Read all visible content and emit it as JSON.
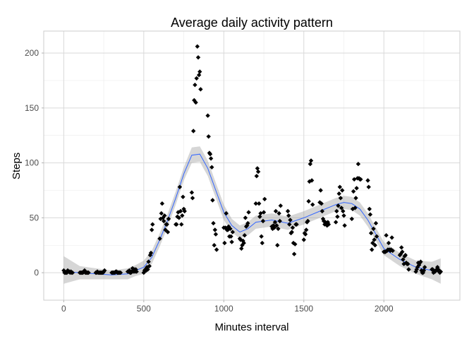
{
  "chart_data": {
    "type": "scatter",
    "title": "Average daily activity pattern",
    "xlabel": "Minutes interval",
    "ylabel": "Steps",
    "xlim": [
      -125,
      2475
    ],
    "ylim": [
      -25,
      220
    ],
    "x_ticks": [
      0,
      500,
      1000,
      1500,
      2000
    ],
    "x_tick_labels": [
      "0",
      "500",
      "1000",
      "1500",
      "2000"
    ],
    "y_ticks": [
      0,
      50,
      100,
      150,
      200
    ],
    "y_tick_labels": [
      "0",
      "50",
      "100",
      "150",
      "200"
    ],
    "grid": true,
    "legend": "none",
    "colors": {
      "points": "#000000",
      "smooth_line": "#3366ff",
      "confidence_band": "#999999",
      "grid_major": "#d9d9d9",
      "grid_minor": "#ebebeb",
      "panel_border": "#cccccc"
    },
    "points": [
      [
        0,
        2
      ],
      [
        5,
        0
      ],
      [
        10,
        0
      ],
      [
        15,
        0
      ],
      [
        20,
        0
      ],
      [
        25,
        2
      ],
      [
        30,
        1
      ],
      [
        35,
        1
      ],
      [
        40,
        0
      ],
      [
        45,
        1
      ],
      [
        50,
        0
      ],
      [
        55,
        0
      ],
      [
        100,
        0
      ],
      [
        105,
        0
      ],
      [
        110,
        0
      ],
      [
        115,
        0
      ],
      [
        120,
        0
      ],
      [
        125,
        1
      ],
      [
        130,
        2
      ],
      [
        135,
        0
      ],
      [
        140,
        0
      ],
      [
        145,
        0
      ],
      [
        150,
        0
      ],
      [
        155,
        0
      ],
      [
        200,
        0
      ],
      [
        205,
        0
      ],
      [
        210,
        1
      ],
      [
        215,
        0
      ],
      [
        220,
        0
      ],
      [
        225,
        0
      ],
      [
        230,
        0
      ],
      [
        235,
        0
      ],
      [
        240,
        0
      ],
      [
        245,
        0
      ],
      [
        250,
        1
      ],
      [
        255,
        2
      ],
      [
        300,
        0
      ],
      [
        305,
        0
      ],
      [
        310,
        0
      ],
      [
        315,
        0
      ],
      [
        320,
        0
      ],
      [
        325,
        1
      ],
      [
        330,
        1
      ],
      [
        335,
        0
      ],
      [
        340,
        0
      ],
      [
        345,
        0
      ],
      [
        350,
        0
      ],
      [
        355,
        0
      ],
      [
        400,
        1
      ],
      [
        405,
        1
      ],
      [
        410,
        2
      ],
      [
        415,
        0
      ],
      [
        420,
        0
      ],
      [
        425,
        1
      ],
      [
        430,
        4
      ],
      [
        435,
        1
      ],
      [
        440,
        3
      ],
      [
        445,
        1
      ],
      [
        450,
        3
      ],
      [
        455,
        1
      ],
      [
        500,
        0
      ],
      [
        505,
        2
      ],
      [
        510,
        3
      ],
      [
        515,
        2
      ],
      [
        520,
        5
      ],
      [
        525,
        3
      ],
      [
        530,
        10
      ],
      [
        535,
        6
      ],
      [
        540,
        16
      ],
      [
        545,
        18
      ],
      [
        550,
        39
      ],
      [
        555,
        44
      ],
      [
        600,
        31
      ],
      [
        605,
        49
      ],
      [
        610,
        54
      ],
      [
        615,
        63
      ],
      [
        620,
        50
      ],
      [
        625,
        47
      ],
      [
        630,
        52
      ],
      [
        635,
        39
      ],
      [
        640,
        44
      ],
      [
        645,
        44
      ],
      [
        650,
        37
      ],
      [
        655,
        49
      ],
      [
        700,
        44
      ],
      [
        705,
        44
      ],
      [
        710,
        51
      ],
      [
        715,
        55
      ],
      [
        720,
        50
      ],
      [
        725,
        78
      ],
      [
        730,
        56
      ],
      [
        735,
        44
      ],
      [
        740,
        52
      ],
      [
        745,
        69
      ],
      [
        750,
        58
      ],
      [
        755,
        56
      ],
      [
        800,
        73
      ],
      [
        805,
        68
      ],
      [
        810,
        129
      ],
      [
        815,
        157
      ],
      [
        820,
        171
      ],
      [
        825,
        155
      ],
      [
        830,
        177
      ],
      [
        835,
        206
      ],
      [
        840,
        196
      ],
      [
        845,
        180
      ],
      [
        850,
        183
      ],
      [
        855,
        167
      ],
      [
        900,
        143
      ],
      [
        905,
        124
      ],
      [
        910,
        109
      ],
      [
        915,
        108
      ],
      [
        920,
        104
      ],
      [
        925,
        96
      ],
      [
        930,
        66
      ],
      [
        935,
        45
      ],
      [
        940,
        25
      ],
      [
        945,
        39
      ],
      [
        950,
        35
      ],
      [
        955,
        21
      ],
      [
        1000,
        41
      ],
      [
        1005,
        27
      ],
      [
        1010,
        41
      ],
      [
        1015,
        54
      ],
      [
        1020,
        39
      ],
      [
        1025,
        39
      ],
      [
        1030,
        42
      ],
      [
        1035,
        33
      ],
      [
        1040,
        40
      ],
      [
        1045,
        33
      ],
      [
        1050,
        28
      ],
      [
        1055,
        37
      ],
      [
        1100,
        31
      ],
      [
        1105,
        30
      ],
      [
        1110,
        22
      ],
      [
        1115,
        25
      ],
      [
        1120,
        29
      ],
      [
        1125,
        27
      ],
      [
        1130,
        34
      ],
      [
        1135,
        50
      ],
      [
        1140,
        42
      ],
      [
        1145,
        43
      ],
      [
        1150,
        45
      ],
      [
        1155,
        55
      ],
      [
        1200,
        63
      ],
      [
        1205,
        88
      ],
      [
        1210,
        95
      ],
      [
        1215,
        92
      ],
      [
        1220,
        63
      ],
      [
        1225,
        51
      ],
      [
        1230,
        54
      ],
      [
        1235,
        33
      ],
      [
        1240,
        27
      ],
      [
        1245,
        47
      ],
      [
        1250,
        55
      ],
      [
        1255,
        67
      ],
      [
        1300,
        42
      ],
      [
        1305,
        40
      ],
      [
        1310,
        43
      ],
      [
        1315,
        41
      ],
      [
        1320,
        46
      ],
      [
        1325,
        56
      ],
      [
        1330,
        43
      ],
      [
        1335,
        25
      ],
      [
        1340,
        40
      ],
      [
        1345,
        54
      ],
      [
        1350,
        47
      ],
      [
        1355,
        61
      ],
      [
        1400,
        56
      ],
      [
        1405,
        52
      ],
      [
        1410,
        44
      ],
      [
        1415,
        48
      ],
      [
        1420,
        36
      ],
      [
        1425,
        37
      ],
      [
        1430,
        41
      ],
      [
        1435,
        27
      ],
      [
        1440,
        17
      ],
      [
        1445,
        26
      ],
      [
        1450,
        44
      ],
      [
        1455,
        44
      ],
      [
        1500,
        30
      ],
      [
        1505,
        36
      ],
      [
        1510,
        35
      ],
      [
        1515,
        39
      ],
      [
        1520,
        46
      ],
      [
        1525,
        47
      ],
      [
        1530,
        65
      ],
      [
        1535,
        83
      ],
      [
        1540,
        99
      ],
      [
        1545,
        102
      ],
      [
        1550,
        84
      ],
      [
        1555,
        62
      ],
      [
        1600,
        64
      ],
      [
        1605,
        75
      ],
      [
        1610,
        63
      ],
      [
        1615,
        56
      ],
      [
        1620,
        49
      ],
      [
        1625,
        47
      ],
      [
        1630,
        44
      ],
      [
        1635,
        46
      ],
      [
        1640,
        44
      ],
      [
        1645,
        43
      ],
      [
        1650,
        46
      ],
      [
        1655,
        44
      ],
      [
        1700,
        46
      ],
      [
        1705,
        56
      ],
      [
        1710,
        51
      ],
      [
        1715,
        61
      ],
      [
        1720,
        72
      ],
      [
        1725,
        78
      ],
      [
        1730,
        68
      ],
      [
        1735,
        59
      ],
      [
        1740,
        75
      ],
      [
        1745,
        56
      ],
      [
        1750,
        52
      ],
      [
        1755,
        43
      ],
      [
        1800,
        49
      ],
      [
        1805,
        58
      ],
      [
        1810,
        74
      ],
      [
        1815,
        85
      ],
      [
        1820,
        59
      ],
      [
        1825,
        68
      ],
      [
        1830,
        77
      ],
      [
        1835,
        86
      ],
      [
        1840,
        99
      ],
      [
        1845,
        86
      ],
      [
        1850,
        85
      ],
      [
        1855,
        85
      ],
      [
        1900,
        84
      ],
      [
        1905,
        78
      ],
      [
        1910,
        58
      ],
      [
        1915,
        53
      ],
      [
        1920,
        36
      ],
      [
        1925,
        21
      ],
      [
        1930,
        27
      ],
      [
        1935,
        40
      ],
      [
        1940,
        30
      ],
      [
        1945,
        25
      ],
      [
        1950,
        45
      ],
      [
        1955,
        33
      ],
      [
        2000,
        19
      ],
      [
        2005,
        19
      ],
      [
        2010,
        19
      ],
      [
        2015,
        34
      ],
      [
        2020,
        20
      ],
      [
        2025,
        21
      ],
      [
        2030,
        27
      ],
      [
        2035,
        21
      ],
      [
        2040,
        20
      ],
      [
        2045,
        21
      ],
      [
        2050,
        32
      ],
      [
        2055,
        20
      ],
      [
        2100,
        16
      ],
      [
        2105,
        17
      ],
      [
        2110,
        23
      ],
      [
        2115,
        19
      ],
      [
        2120,
        12
      ],
      [
        2125,
        8
      ],
      [
        2130,
        15
      ],
      [
        2135,
        16
      ],
      [
        2140,
        9
      ],
      [
        2145,
        8
      ],
      [
        2150,
        8
      ],
      [
        2155,
        3
      ],
      [
        2200,
        1
      ],
      [
        2205,
        3
      ],
      [
        2210,
        5
      ],
      [
        2215,
        9
      ],
      [
        2220,
        7
      ],
      [
        2225,
        9
      ],
      [
        2230,
        10
      ],
      [
        2235,
        2
      ],
      [
        2240,
        0
      ],
      [
        2245,
        0
      ],
      [
        2250,
        2
      ],
      [
        2255,
        5
      ],
      [
        2300,
        3
      ],
      [
        2305,
        3
      ],
      [
        2310,
        0
      ],
      [
        2315,
        1
      ],
      [
        2320,
        1
      ],
      [
        2325,
        2
      ],
      [
        2330,
        3
      ],
      [
        2335,
        5
      ],
      [
        2340,
        3
      ],
      [
        2345,
        1
      ],
      [
        2350,
        0
      ],
      [
        2355,
        1
      ]
    ],
    "smooth": {
      "x": [
        0,
        100,
        200,
        300,
        400,
        450,
        500,
        550,
        600,
        650,
        700,
        750,
        800,
        850,
        900,
        950,
        1000,
        1050,
        1100,
        1150,
        1200,
        1300,
        1400,
        1500,
        1600,
        1700,
        1750,
        1800,
        1850,
        1900,
        1950,
        2000,
        2100,
        2200,
        2300,
        2355
      ],
      "y": [
        1,
        0,
        -1,
        -2,
        -1,
        2,
        5,
        14,
        30,
        48,
        68,
        90,
        107,
        108,
        95,
        75,
        55,
        43,
        37,
        40,
        46,
        48,
        45,
        50,
        56,
        62,
        64,
        63,
        58,
        48,
        35,
        22,
        12,
        5,
        2,
        1
      ],
      "lower": [
        -10,
        -6,
        -6,
        -6,
        -6,
        -3,
        -1,
        8,
        24,
        42,
        62,
        84,
        100,
        101,
        88,
        68,
        48,
        37,
        31,
        34,
        40,
        42,
        39,
        44,
        50,
        56,
        58,
        57,
        52,
        42,
        29,
        16,
        6,
        -1,
        -6,
        -10
      ],
      "upper": [
        15,
        6,
        4,
        2,
        4,
        7,
        11,
        20,
        36,
        54,
        74,
        96,
        114,
        115,
        102,
        82,
        62,
        49,
        43,
        46,
        52,
        54,
        51,
        56,
        62,
        68,
        70,
        69,
        64,
        54,
        41,
        28,
        18,
        11,
        10,
        13
      ]
    }
  }
}
